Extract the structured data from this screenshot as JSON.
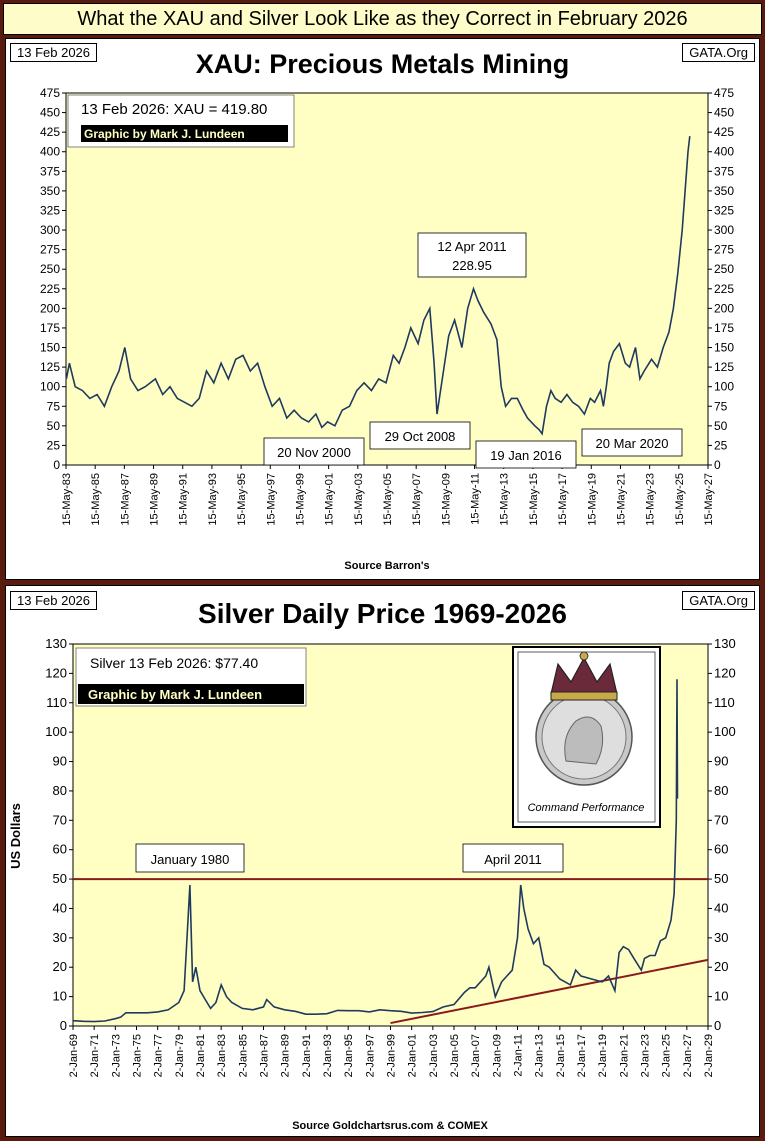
{
  "header": {
    "title": "What the XAU and Silver Look Like as they Correct in February 2026"
  },
  "panel1": {
    "date": "13 Feb 2026",
    "site": "GATA.Org",
    "credit": "Graphic by Mark J. Lundeen",
    "value_label": "13 Feb 2026: XAU = 419.80",
    "source": "Source Barron's"
  },
  "panel2": {
    "date": "13 Feb 2026",
    "site": "GATA.Org",
    "credit": "Graphic by Mark J. Lundeen",
    "value_label": "Silver 13 Feb 2026:  $77.40",
    "source": "Source Goldchartsrus.com & COMEX",
    "image_caption": "Command Performance"
  },
  "chart_data": [
    {
      "type": "line",
      "title": "XAU: Precious Metals Mining",
      "xlabel": "",
      "ylabel": "",
      "ylim": [
        0,
        475
      ],
      "xlim": [
        1983.37,
        2027.37
      ],
      "grid": false,
      "y_ticks": [
        0,
        25,
        50,
        75,
        100,
        125,
        150,
        175,
        200,
        225,
        250,
        275,
        300,
        325,
        350,
        375,
        400,
        425,
        450,
        475
      ],
      "x_tick_labels": [
        "15-May-83",
        "15-May-85",
        "15-May-87",
        "15-May-89",
        "15-May-91",
        "15-May-93",
        "15-May-95",
        "15-May-97",
        "15-May-99",
        "15-May-01",
        "15-May-03",
        "15-May-05",
        "15-May-07",
        "15-May-09",
        "15-May-11",
        "15-May-13",
        "15-May-15",
        "15-May-17",
        "15-May-19",
        "15-May-21",
        "15-May-23",
        "15-May-25",
        "15-May-27"
      ],
      "series": [
        {
          "x": [
            1983.4,
            1983.6,
            1984.0,
            1984.5,
            1985.0,
            1985.5,
            1986.0,
            1986.5,
            1987.0,
            1987.4,
            1987.8,
            1988.3,
            1988.8,
            1989.5,
            1990.0,
            1990.5,
            1991.0,
            1991.5,
            1992.0,
            1992.5,
            1993.0,
            1993.5,
            1994.0,
            1994.5,
            1995.0,
            1995.5,
            1996.0,
            1996.5,
            1997.0,
            1997.5,
            1998.0,
            1998.5,
            1999.0,
            1999.5,
            2000.0,
            2000.5,
            2000.9,
            2001.3,
            2001.8,
            2002.3,
            2002.8,
            2003.3,
            2003.8,
            2004.3,
            2004.8,
            2005.3,
            2005.8,
            2006.2,
            2006.6,
            2007.0,
            2007.5,
            2007.9,
            2008.3,
            2008.6,
            2008.8,
            2009.2,
            2009.6,
            2010.0,
            2010.5,
            2010.9,
            2011.3,
            2011.6,
            2012.0,
            2012.5,
            2012.9,
            2013.2,
            2013.5,
            2013.9,
            2014.3,
            2014.7,
            2015.0,
            2015.5,
            2015.8,
            2016.0,
            2016.3,
            2016.6,
            2016.9,
            2017.3,
            2017.7,
            2018.1,
            2018.5,
            2018.9,
            2019.3,
            2019.6,
            2020.0,
            2020.2,
            2020.4,
            2020.6,
            2020.9,
            2021.3,
            2021.7,
            2022.0,
            2022.4,
            2022.7,
            2023.0,
            2023.5,
            2023.9,
            2024.3,
            2024.7,
            2025.0,
            2025.3,
            2025.6,
            2025.8,
            2026.0,
            2026.12
          ],
          "values": [
            110,
            130,
            100,
            95,
            85,
            90,
            75,
            100,
            120,
            150,
            110,
            95,
            100,
            110,
            90,
            100,
            85,
            80,
            75,
            85,
            120,
            105,
            130,
            110,
            135,
            140,
            120,
            130,
            100,
            75,
            85,
            60,
            70,
            60,
            55,
            65,
            48,
            55,
            50,
            70,
            75,
            95,
            105,
            95,
            110,
            105,
            140,
            130,
            150,
            175,
            155,
            185,
            200,
            130,
            65,
            115,
            165,
            185,
            150,
            200,
            225,
            210,
            195,
            180,
            160,
            100,
            75,
            85,
            85,
            70,
            60,
            50,
            45,
            40,
            75,
            95,
            85,
            80,
            90,
            80,
            75,
            65,
            85,
            80,
            95,
            75,
            100,
            130,
            145,
            155,
            130,
            125,
            150,
            110,
            120,
            135,
            125,
            150,
            170,
            200,
            245,
            300,
            350,
            400,
            420
          ]
        }
      ],
      "annotations": [
        {
          "text": "12 Apr 2011",
          "text2": "228.95"
        },
        {
          "text": "20 Nov 2000"
        },
        {
          "text": "29 Oct 2008"
        },
        {
          "text": "19 Jan 2016"
        },
        {
          "text": "20 Mar 2020"
        }
      ]
    },
    {
      "type": "line",
      "title": "Silver Daily Price 1969-2026",
      "xlabel": "",
      "ylabel": "US Dollars",
      "ylim": [
        0,
        130
      ],
      "xlim": [
        1969.0,
        2029.0
      ],
      "grid": false,
      "y_ticks": [
        0,
        10,
        20,
        30,
        40,
        50,
        60,
        70,
        80,
        90,
        100,
        110,
        120,
        130
      ],
      "x_tick_labels": [
        "2-Jan-69",
        "2-Jan-71",
        "2-Jan-73",
        "2-Jan-75",
        "2-Jan-77",
        "2-Jan-79",
        "2-Jan-81",
        "2-Jan-83",
        "2-Jan-85",
        "2-Jan-87",
        "2-Jan-89",
        "2-Jan-91",
        "2-Jan-93",
        "2-Jan-95",
        "2-Jan-97",
        "2-Jan-99",
        "2-Jan-01",
        "2-Jan-03",
        "2-Jan-05",
        "2-Jan-07",
        "2-Jan-09",
        "2-Jan-11",
        "2-Jan-13",
        "2-Jan-15",
        "2-Jan-17",
        "2-Jan-19",
        "2-Jan-21",
        "2-Jan-23",
        "2-Jan-25",
        "2-Jan-27",
        "2-Jan-29"
      ],
      "series": [
        {
          "x": [
            1969.0,
            1970.0,
            1971.0,
            1972.0,
            1973.0,
            1973.5,
            1974.0,
            1975.0,
            1976.0,
            1977.0,
            1978.0,
            1979.0,
            1979.5,
            1980.05,
            1980.3,
            1980.6,
            1981.0,
            1981.5,
            1982.0,
            1982.5,
            1983.0,
            1983.5,
            1984.0,
            1985.0,
            1986.0,
            1987.0,
            1987.3,
            1988.0,
            1989.0,
            1990.0,
            1991.0,
            1992.0,
            1993.0,
            1994.0,
            1995.0,
            1996.0,
            1997.0,
            1998.0,
            1999.0,
            2000.0,
            2001.0,
            2002.0,
            2003.0,
            2004.0,
            2005.0,
            2006.0,
            2006.5,
            2007.0,
            2008.0,
            2008.3,
            2008.9,
            2009.5,
            2010.0,
            2010.5,
            2011.0,
            2011.3,
            2011.6,
            2012.0,
            2012.5,
            2013.0,
            2013.5,
            2014.0,
            2015.0,
            2016.0,
            2016.5,
            2017.0,
            2018.0,
            2019.0,
            2019.6,
            2020.2,
            2020.6,
            2021.0,
            2021.5,
            2022.0,
            2022.7,
            2023.0,
            2023.5,
            2024.0,
            2024.5,
            2025.0,
            2025.5,
            2025.8,
            2026.0,
            2026.07,
            2026.12
          ],
          "values": [
            1.8,
            1.6,
            1.5,
            1.7,
            2.5,
            3.0,
            4.5,
            4.5,
            4.5,
            4.8,
            5.5,
            8.0,
            12.0,
            48.0,
            15.0,
            20.0,
            12.0,
            9.0,
            6.0,
            8.0,
            14.0,
            10.0,
            8.0,
            6.0,
            5.5,
            6.5,
            9.0,
            6.5,
            5.5,
            5.0,
            4.0,
            4.0,
            4.2,
            5.3,
            5.2,
            5.2,
            4.8,
            5.5,
            5.2,
            5.0,
            4.4,
            4.6,
            4.9,
            6.5,
            7.3,
            11.5,
            13.0,
            13.0,
            17.0,
            20.0,
            10.0,
            15.0,
            17.0,
            19.0,
            30.0,
            48.0,
            40.0,
            33.0,
            28.0,
            30.0,
            21.0,
            20.0,
            16.0,
            14.0,
            19.0,
            17.0,
            16.0,
            15.0,
            17.0,
            12.0,
            25.0,
            27.0,
            26.0,
            23.0,
            19.0,
            23.0,
            24.0,
            24.0,
            29.0,
            30.0,
            36.0,
            45.0,
            70.0,
            118.0,
            77.4
          ]
        },
        {
          "name": "",
          "x": [
            1999.0,
            2029.0
          ],
          "values": [
            1.0,
            22.5
          ]
        }
      ],
      "reference_line": {
        "y": 50
      },
      "annotations": [
        {
          "text": "January 1980"
        },
        {
          "text": "April 2011"
        }
      ]
    }
  ]
}
